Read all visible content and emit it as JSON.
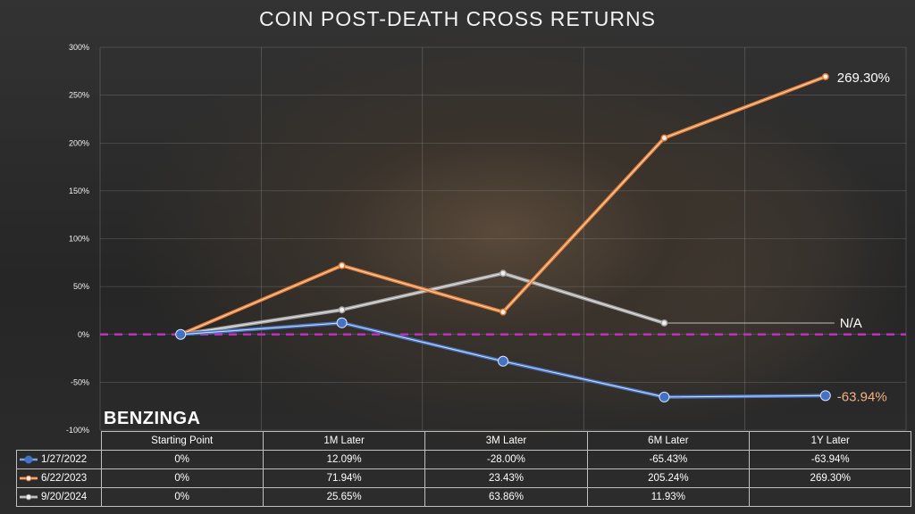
{
  "title": "COIN POST-DEATH CROSS RETURNS",
  "brand": "BENZINGA",
  "chart_data": {
    "type": "line",
    "title": "COIN POST-DEATH CROSS RETURNS",
    "categories": [
      "Starting Point",
      "1M Later",
      "3M Later",
      "6M Later",
      "1Y Later"
    ],
    "ylim": [
      -100,
      300
    ],
    "yticks": [
      "-100%",
      "-50%",
      "0%",
      "50%",
      "100%",
      "150%",
      "200%",
      "250%",
      "300%"
    ],
    "ytick_values": [
      -100,
      -50,
      0,
      50,
      100,
      150,
      200,
      250,
      300
    ],
    "grid": true,
    "reference_line": 0,
    "series": [
      {
        "name": "1/27/2022",
        "color": "#4472c4",
        "values": [
          0,
          12.09,
          -28.0,
          -65.43,
          -63.94
        ]
      },
      {
        "name": "6/22/2023",
        "color": "#ed7d31",
        "values": [
          0,
          71.94,
          23.43,
          205.24,
          269.3
        ]
      },
      {
        "name": "9/20/2024",
        "color": "#a5a5a5",
        "values": [
          0,
          25.65,
          63.86,
          11.93,
          null
        ]
      }
    ],
    "end_labels": [
      {
        "series": "6/22/2023",
        "text": "269.30%",
        "color": "#ffffff"
      },
      {
        "series": "9/20/2024",
        "text": "N/A",
        "color": "#ffffff"
      },
      {
        "series": "1/27/2022",
        "text": "-63.94%",
        "color": "#f4b183"
      }
    ],
    "table": {
      "header": [
        "Starting Point",
        "1M Later",
        "3M Later",
        "6M Later",
        "1Y Later"
      ],
      "rows": [
        {
          "label": "1/27/2022",
          "cells": [
            "0%",
            "12.09%",
            "-28.00%",
            "-65.43%",
            "-63.94%"
          ]
        },
        {
          "label": "6/22/2023",
          "cells": [
            "0%",
            "71.94%",
            "23.43%",
            "205.24%",
            "269.30%"
          ]
        },
        {
          "label": "9/20/2024",
          "cells": [
            "0%",
            "25.65%",
            "63.86%",
            "11.93%",
            ""
          ]
        }
      ]
    }
  },
  "colors": {
    "zero_line": "#c030c0",
    "grid": "#8a8a8a"
  }
}
